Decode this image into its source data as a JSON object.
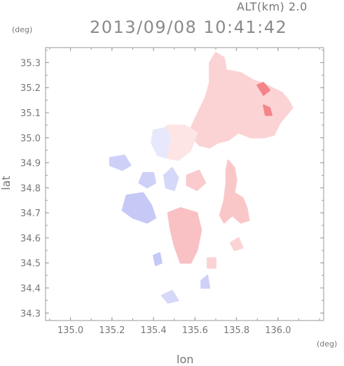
{
  "header": {
    "altitude_label": "ALT(km) 2.0",
    "datetime": "2013/09/08 10:41:42"
  },
  "colors": {
    "positive": "#ef4f56",
    "negative": "#5c63e6",
    "axis": "#9a9a9a",
    "text": "#777777"
  },
  "chart_data": {
    "type": "heatmap",
    "xlabel": "lon",
    "ylabel": "lat",
    "xunit": "(deg)",
    "yunit": "(deg)",
    "xlim": [
      134.88,
      136.22
    ],
    "ylim": [
      34.27,
      35.36
    ],
    "xticks": [
      135.0,
      135.2,
      135.4,
      135.6,
      135.8,
      136.0
    ],
    "xtick_labels": [
      "135.0",
      "135.2",
      "135.4",
      "135.6",
      "135.8",
      "136.0"
    ],
    "yticks": [
      34.3,
      34.4,
      34.5,
      34.6,
      34.7,
      34.8,
      34.9,
      35.0,
      35.1,
      35.2,
      35.3
    ],
    "ytick_labels": [
      "34.3",
      "34.4",
      "34.5",
      "34.6",
      "34.7",
      "34.8",
      "34.9",
      "35.0",
      "35.1",
      "35.2",
      "35.3"
    ],
    "regions": [
      {
        "sign": "positive",
        "strength": 0.25,
        "points": [
          [
            135.57,
            35.02
          ],
          [
            135.62,
            35.11
          ],
          [
            135.65,
            35.16
          ],
          [
            135.67,
            35.22
          ],
          [
            135.67,
            35.3
          ],
          [
            135.7,
            35.34
          ],
          [
            135.74,
            35.32
          ],
          [
            135.75,
            35.27
          ],
          [
            135.82,
            35.26
          ],
          [
            135.88,
            35.23
          ],
          [
            135.92,
            35.22
          ],
          [
            135.97,
            35.2
          ],
          [
            136.02,
            35.18
          ],
          [
            136.05,
            35.15
          ],
          [
            136.07,
            35.12
          ],
          [
            136.04,
            35.09
          ],
          [
            136.01,
            35.06
          ],
          [
            135.98,
            35.01
          ],
          [
            135.93,
            35.0
          ],
          [
            135.87,
            35.0
          ],
          [
            135.81,
            35.02
          ],
          [
            135.76,
            34.99
          ],
          [
            135.71,
            34.98
          ],
          [
            135.67,
            34.96
          ],
          [
            135.62,
            34.97
          ]
        ]
      },
      {
        "sign": "positive",
        "strength": 0.7,
        "points": [
          [
            135.9,
            35.21
          ],
          [
            135.93,
            35.22
          ],
          [
            135.96,
            35.19
          ],
          [
            135.93,
            35.17
          ]
        ]
      },
      {
        "sign": "positive",
        "strength": 0.7,
        "points": [
          [
            135.93,
            35.13
          ],
          [
            135.96,
            35.12
          ],
          [
            135.97,
            35.09
          ],
          [
            135.94,
            35.09
          ]
        ]
      },
      {
        "sign": "positive",
        "strength": 0.15,
        "points": [
          [
            135.41,
            35.01
          ],
          [
            135.47,
            35.05
          ],
          [
            135.55,
            35.05
          ],
          [
            135.61,
            35.02
          ],
          [
            135.58,
            34.95
          ],
          [
            135.52,
            34.91
          ],
          [
            135.46,
            34.92
          ],
          [
            135.42,
            34.96
          ]
        ]
      },
      {
        "sign": "negative",
        "strength": 0.15,
        "points": [
          [
            135.4,
            35.03
          ],
          [
            135.46,
            35.04
          ],
          [
            135.48,
            35.0
          ],
          [
            135.46,
            34.92
          ],
          [
            135.42,
            34.93
          ],
          [
            135.39,
            34.98
          ]
        ]
      },
      {
        "sign": "positive",
        "strength": 0.32,
        "points": [
          [
            135.76,
            34.91
          ],
          [
            135.79,
            34.88
          ],
          [
            135.8,
            34.83
          ],
          [
            135.79,
            34.78
          ],
          [
            135.83,
            34.76
          ],
          [
            135.85,
            34.72
          ],
          [
            135.86,
            34.67
          ],
          [
            135.82,
            34.66
          ],
          [
            135.78,
            34.69
          ],
          [
            135.74,
            34.66
          ],
          [
            135.72,
            34.69
          ],
          [
            135.74,
            34.75
          ],
          [
            135.75,
            34.82
          ],
          [
            135.75,
            34.87
          ]
        ]
      },
      {
        "sign": "positive",
        "strength": 0.25,
        "points": [
          [
            135.77,
            34.58
          ],
          [
            135.81,
            34.6
          ],
          [
            135.83,
            34.56
          ],
          [
            135.79,
            34.55
          ]
        ]
      },
      {
        "sign": "negative",
        "strength": 0.35,
        "points": [
          [
            135.27,
            34.77
          ],
          [
            135.35,
            34.78
          ],
          [
            135.39,
            34.73
          ],
          [
            135.41,
            34.68
          ],
          [
            135.37,
            34.66
          ],
          [
            135.3,
            34.68
          ],
          [
            135.25,
            34.71
          ]
        ]
      },
      {
        "sign": "negative",
        "strength": 0.3,
        "points": [
          [
            135.35,
            34.86
          ],
          [
            135.4,
            34.86
          ],
          [
            135.41,
            34.82
          ],
          [
            135.37,
            34.8
          ],
          [
            135.33,
            34.82
          ]
        ]
      },
      {
        "sign": "negative",
        "strength": 0.3,
        "points": [
          [
            135.19,
            34.92
          ],
          [
            135.26,
            34.93
          ],
          [
            135.29,
            34.89
          ],
          [
            135.25,
            34.87
          ],
          [
            135.19,
            34.89
          ]
        ]
      },
      {
        "sign": "positive",
        "strength": 0.35,
        "points": [
          [
            135.47,
            34.7
          ],
          [
            135.53,
            34.72
          ],
          [
            135.61,
            34.7
          ],
          [
            135.63,
            34.63
          ],
          [
            135.61,
            34.55
          ],
          [
            135.58,
            34.5
          ],
          [
            135.53,
            34.5
          ],
          [
            135.5,
            34.57
          ],
          [
            135.48,
            34.64
          ]
        ]
      },
      {
        "sign": "negative",
        "strength": 0.25,
        "points": [
          [
            135.45,
            34.85
          ],
          [
            135.49,
            34.88
          ],
          [
            135.52,
            34.84
          ],
          [
            135.5,
            34.79
          ],
          [
            135.46,
            34.8
          ]
        ]
      },
      {
        "sign": "positive",
        "strength": 0.3,
        "points": [
          [
            135.56,
            34.85
          ],
          [
            135.62,
            34.87
          ],
          [
            135.65,
            34.82
          ],
          [
            135.61,
            34.79
          ],
          [
            135.56,
            34.81
          ]
        ]
      },
      {
        "sign": "negative",
        "strength": 0.3,
        "points": [
          [
            135.63,
            34.43
          ],
          [
            135.66,
            34.45
          ],
          [
            135.67,
            34.4
          ],
          [
            135.63,
            34.4
          ]
        ]
      },
      {
        "sign": "negative",
        "strength": 0.25,
        "points": [
          [
            135.44,
            34.37
          ],
          [
            135.49,
            34.39
          ],
          [
            135.52,
            34.35
          ],
          [
            135.47,
            34.34
          ]
        ]
      },
      {
        "sign": "negative",
        "strength": 0.35,
        "points": [
          [
            135.4,
            34.53
          ],
          [
            135.43,
            34.54
          ],
          [
            135.44,
            34.5
          ],
          [
            135.41,
            34.49
          ]
        ]
      },
      {
        "sign": "positive",
        "strength": 0.25,
        "points": [
          [
            135.66,
            34.52
          ],
          [
            135.7,
            34.52
          ],
          [
            135.7,
            34.48
          ],
          [
            135.66,
            34.48
          ]
        ]
      }
    ]
  }
}
